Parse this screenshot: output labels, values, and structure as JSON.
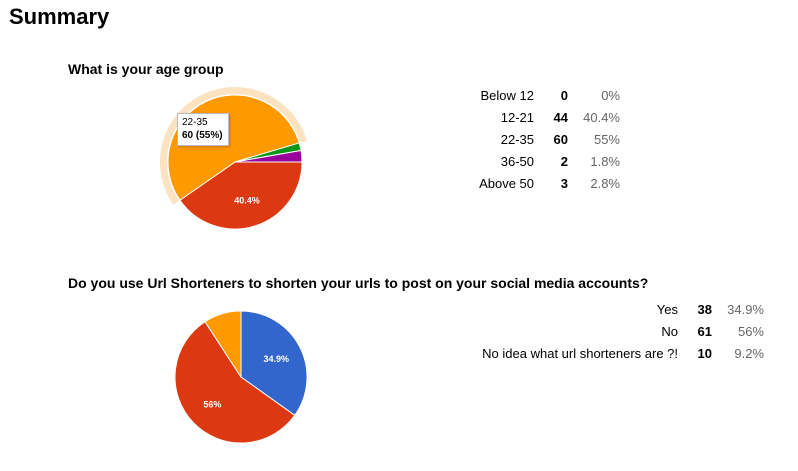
{
  "page": {
    "title": "Summary"
  },
  "questions": [
    {
      "title": "What is your age group",
      "rows": [
        {
          "label": "Below 12",
          "count": "0",
          "pct": "0%"
        },
        {
          "label": "12-21",
          "count": "44",
          "pct": "40.4%"
        },
        {
          "label": "22-35",
          "count": "60",
          "pct": "55%"
        },
        {
          "label": "36-50",
          "count": "2",
          "pct": "1.8%"
        },
        {
          "label": "Above 50",
          "count": "3",
          "pct": "2.8%"
        }
      ],
      "tooltip": {
        "label": "22-35",
        "value": "60 (55%)"
      }
    },
    {
      "title": "Do you use Url Shorteners to shorten your urls to post on your social media accounts?",
      "rows": [
        {
          "label": "Yes",
          "count": "38",
          "pct": "34.9%"
        },
        {
          "label": "No",
          "count": "61",
          "pct": "56%"
        },
        {
          "label": "No idea what url shorteners are ?!",
          "count": "10",
          "pct": "9.2%"
        }
      ]
    }
  ],
  "chart_data": [
    {
      "type": "pie",
      "title": "What is your age group",
      "categories": [
        "Below 12",
        "12-21",
        "22-35",
        "36-50",
        "Above 50"
      ],
      "values": [
        0,
        44,
        60,
        2,
        3
      ],
      "colors": [
        "#3366cc",
        "#dc3912",
        "#ff9900",
        "#109618",
        "#990099"
      ],
      "slice_labels": [
        "",
        "40.4%",
        "",
        "",
        ""
      ],
      "highlighted": "22-35",
      "highlight_color": "#fbe3c2"
    },
    {
      "type": "pie",
      "title": "Do you use Url Shorteners to shorten your urls to post on your social media accounts?",
      "categories": [
        "Yes",
        "No",
        "No idea what url shorteners are ?!"
      ],
      "values": [
        38,
        61,
        10
      ],
      "colors": [
        "#3366cc",
        "#dc3912",
        "#ff9900"
      ],
      "slice_labels": [
        "34.9%",
        "56%",
        ""
      ]
    }
  ]
}
